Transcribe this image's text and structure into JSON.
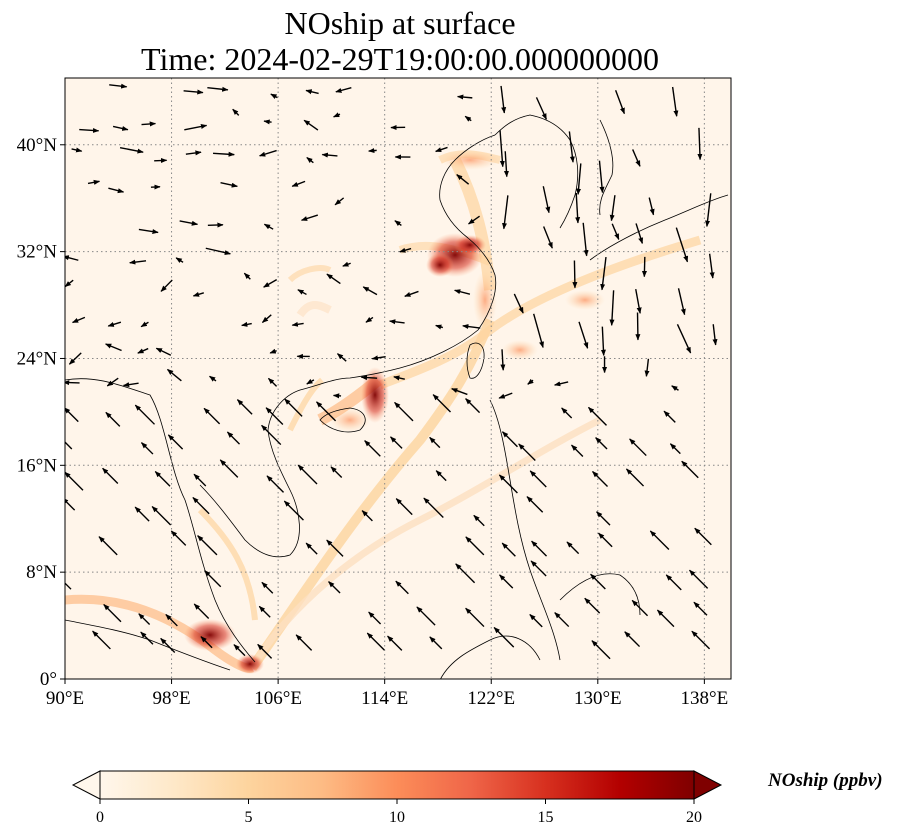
{
  "title": {
    "line1": "NOship at surface",
    "line2": "Time: 2024-02-29T19:00:00.000000000"
  },
  "map": {
    "lon_range": [
      90,
      140
    ],
    "lat_range": [
      0,
      45
    ],
    "lon_ticks": [
      {
        "value": 90,
        "label": "90°E"
      },
      {
        "value": 98,
        "label": "98°E"
      },
      {
        "value": 106,
        "label": "106°E"
      },
      {
        "value": 114,
        "label": "114°E"
      },
      {
        "value": 122,
        "label": "122°E"
      },
      {
        "value": 130,
        "label": "130°E"
      },
      {
        "value": 138,
        "label": "138°E"
      }
    ],
    "lat_ticks": [
      {
        "value": 0,
        "label": "0°"
      },
      {
        "value": 8,
        "label": "8°N"
      },
      {
        "value": 16,
        "label": "16°N"
      },
      {
        "value": 24,
        "label": "24°N"
      },
      {
        "value": 32,
        "label": "32°N"
      },
      {
        "value": 40,
        "label": "40°N"
      }
    ],
    "gridlines": "dotted",
    "colors": {
      "background": "#fff5ea",
      "land_outline": "#000000",
      "grid": "#888888",
      "wind_arrow": "#000000"
    }
  },
  "colorbar": {
    "label": "NOship (ppbv)",
    "min": 0,
    "max": 20,
    "extend": "both",
    "colormap": "OrRd",
    "ticks": [
      {
        "value": 0,
        "label": "0"
      },
      {
        "value": 5,
        "label": "5"
      },
      {
        "value": 10,
        "label": "10"
      },
      {
        "value": 15,
        "label": "15"
      },
      {
        "value": 20,
        "label": "20"
      }
    ],
    "color_stops": [
      "#fff7ec",
      "#fee8c8",
      "#fdd49e",
      "#fdbb84",
      "#fc8d59",
      "#ef6548",
      "#d7301f",
      "#b30000",
      "#7f0000"
    ]
  }
}
